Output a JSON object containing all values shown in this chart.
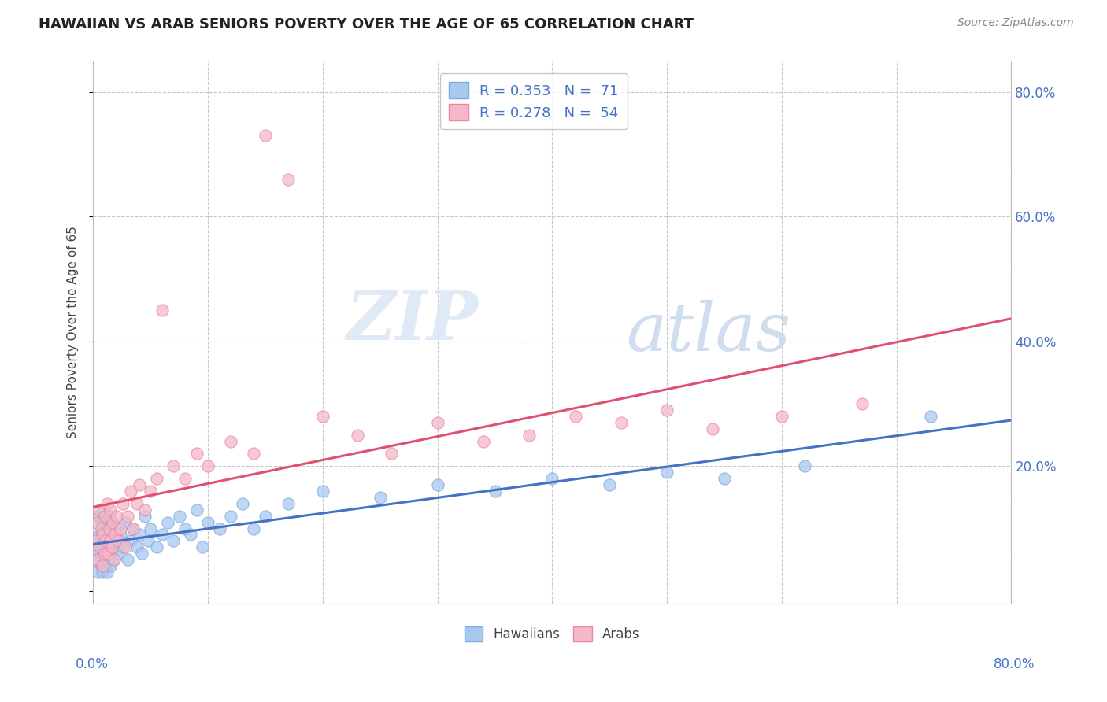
{
  "title": "HAWAIIAN VS ARAB SENIORS POVERTY OVER THE AGE OF 65 CORRELATION CHART",
  "source_text": "Source: ZipAtlas.com",
  "ylabel": "Seniors Poverty Over the Age of 65",
  "xlim": [
    0,
    0.8
  ],
  "ylim": [
    -0.02,
    0.85
  ],
  "background_color": "#ffffff",
  "grid_color": "#c8c8c8",
  "hawaiian_color": "#a8c8f0",
  "hawaiian_edge_color": "#7aabdc",
  "arab_color": "#f5b8c8",
  "arab_edge_color": "#e888a0",
  "hawaiian_line_color": "#4472c4",
  "arab_line_color": "#e05070",
  "watermark_zip": "ZIP",
  "watermark_atlas": "atlas",
  "legend_hawaiian_r": "R = 0.353",
  "legend_hawaiian_n": "N = 71",
  "legend_arab_r": "R = 0.278",
  "legend_arab_n": "N = 54",
  "label_hawaiians": "Hawaiians",
  "label_arabs": "Arabs",
  "ytick_positions": [
    0.0,
    0.2,
    0.4,
    0.6,
    0.8
  ],
  "ytick_labels_right": [
    "",
    "20.0%",
    "40.0%",
    "60.0%",
    "80.0%"
  ],
  "hawaiian_x": [
    0.002,
    0.003,
    0.004,
    0.005,
    0.006,
    0.006,
    0.007,
    0.007,
    0.007,
    0.008,
    0.008,
    0.009,
    0.009,
    0.01,
    0.01,
    0.01,
    0.011,
    0.011,
    0.012,
    0.012,
    0.013,
    0.013,
    0.014,
    0.014,
    0.015,
    0.015,
    0.016,
    0.016,
    0.017,
    0.018,
    0.019,
    0.02,
    0.022,
    0.024,
    0.026,
    0.028,
    0.03,
    0.033,
    0.035,
    0.038,
    0.04,
    0.042,
    0.045,
    0.048,
    0.05,
    0.055,
    0.06,
    0.065,
    0.07,
    0.075,
    0.08,
    0.085,
    0.09,
    0.095,
    0.1,
    0.11,
    0.12,
    0.13,
    0.14,
    0.15,
    0.17,
    0.2,
    0.25,
    0.3,
    0.35,
    0.4,
    0.45,
    0.5,
    0.55,
    0.62,
    0.73
  ],
  "hawaiian_y": [
    0.05,
    0.08,
    0.03,
    0.12,
    0.06,
    0.09,
    0.04,
    0.11,
    0.07,
    0.03,
    0.09,
    0.06,
    0.13,
    0.04,
    0.08,
    0.11,
    0.05,
    0.09,
    0.03,
    0.07,
    0.1,
    0.05,
    0.08,
    0.12,
    0.04,
    0.09,
    0.06,
    0.11,
    0.07,
    0.05,
    0.1,
    0.08,
    0.06,
    0.09,
    0.07,
    0.11,
    0.05,
    0.08,
    0.1,
    0.07,
    0.09,
    0.06,
    0.12,
    0.08,
    0.1,
    0.07,
    0.09,
    0.11,
    0.08,
    0.12,
    0.1,
    0.09,
    0.13,
    0.07,
    0.11,
    0.1,
    0.12,
    0.14,
    0.1,
    0.12,
    0.14,
    0.16,
    0.15,
    0.17,
    0.16,
    0.18,
    0.17,
    0.19,
    0.18,
    0.2,
    0.28
  ],
  "arab_x": [
    0.002,
    0.003,
    0.004,
    0.005,
    0.006,
    0.007,
    0.008,
    0.009,
    0.01,
    0.01,
    0.011,
    0.012,
    0.013,
    0.014,
    0.015,
    0.015,
    0.016,
    0.017,
    0.018,
    0.019,
    0.02,
    0.022,
    0.024,
    0.026,
    0.028,
    0.03,
    0.033,
    0.035,
    0.038,
    0.04,
    0.045,
    0.05,
    0.055,
    0.06,
    0.07,
    0.08,
    0.09,
    0.1,
    0.12,
    0.14,
    0.15,
    0.17,
    0.2,
    0.23,
    0.26,
    0.3,
    0.34,
    0.38,
    0.42,
    0.46,
    0.5,
    0.54,
    0.6,
    0.67
  ],
  "arab_y": [
    0.08,
    0.11,
    0.05,
    0.13,
    0.07,
    0.1,
    0.04,
    0.09,
    0.06,
    0.12,
    0.08,
    0.14,
    0.06,
    0.1,
    0.08,
    0.13,
    0.07,
    0.11,
    0.05,
    0.09,
    0.12,
    0.08,
    0.1,
    0.14,
    0.07,
    0.12,
    0.16,
    0.1,
    0.14,
    0.17,
    0.13,
    0.16,
    0.18,
    0.45,
    0.2,
    0.18,
    0.22,
    0.2,
    0.24,
    0.22,
    0.73,
    0.66,
    0.28,
    0.25,
    0.22,
    0.27,
    0.24,
    0.25,
    0.28,
    0.27,
    0.29,
    0.26,
    0.28,
    0.3
  ]
}
